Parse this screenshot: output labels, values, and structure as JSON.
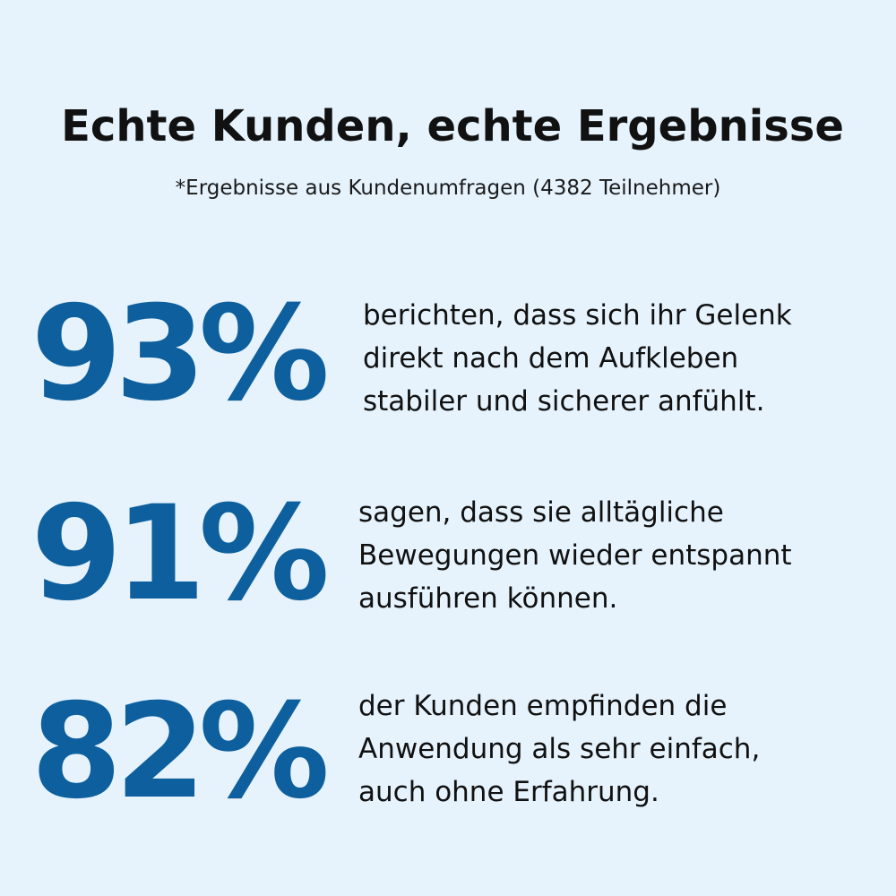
{
  "header": {
    "title": "Echte Kunden, echte Ergebnisse",
    "subtitle": "*Ergebnisse aus Kundenumfragen (4382 Teilnehmer)"
  },
  "stats": [
    {
      "value": "93%",
      "lines": [
        "berichten, dass sich ihr Gelenk",
        "direkt nach dem Aufkleben",
        "stabiler und sicherer anfühlt."
      ]
    },
    {
      "value": "91%",
      "lines": [
        "sagen, dass sie alltägliche",
        "Bewegungen wieder entspannt",
        "ausführen können."
      ]
    },
    {
      "value": "82%",
      "lines": [
        "der Kunden empfinden die",
        "Anwendung als sehr einfach,",
        "auch ohne Erfahrung."
      ]
    }
  ],
  "colors": {
    "background": "#e6f3fd",
    "accent": "#0d5f9d",
    "text": "#111111"
  }
}
